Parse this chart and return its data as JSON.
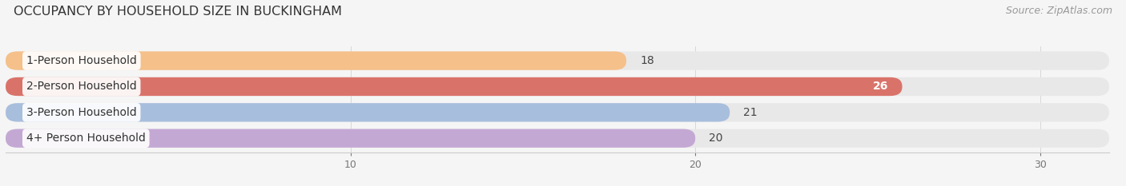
{
  "title": "OCCUPANCY BY HOUSEHOLD SIZE IN BUCKINGHAM",
  "source_text": "Source: ZipAtlas.com",
  "categories": [
    "1-Person Household",
    "2-Person Household",
    "3-Person Household",
    "4+ Person Household"
  ],
  "values": [
    18,
    26,
    21,
    20
  ],
  "bar_colors": [
    "#f5c08a",
    "#d9736a",
    "#a8bedd",
    "#c4a8d4"
  ],
  "value_inside": [
    false,
    true,
    false,
    false
  ],
  "bar_bg_color": "#e8e8e8",
  "xlim": [
    0,
    32
  ],
  "xticks": [
    10,
    20,
    30
  ],
  "title_fontsize": 11.5,
  "source_fontsize": 9,
  "cat_fontsize": 10,
  "value_fontsize": 10,
  "tick_fontsize": 9,
  "background_color": "#f5f5f5"
}
